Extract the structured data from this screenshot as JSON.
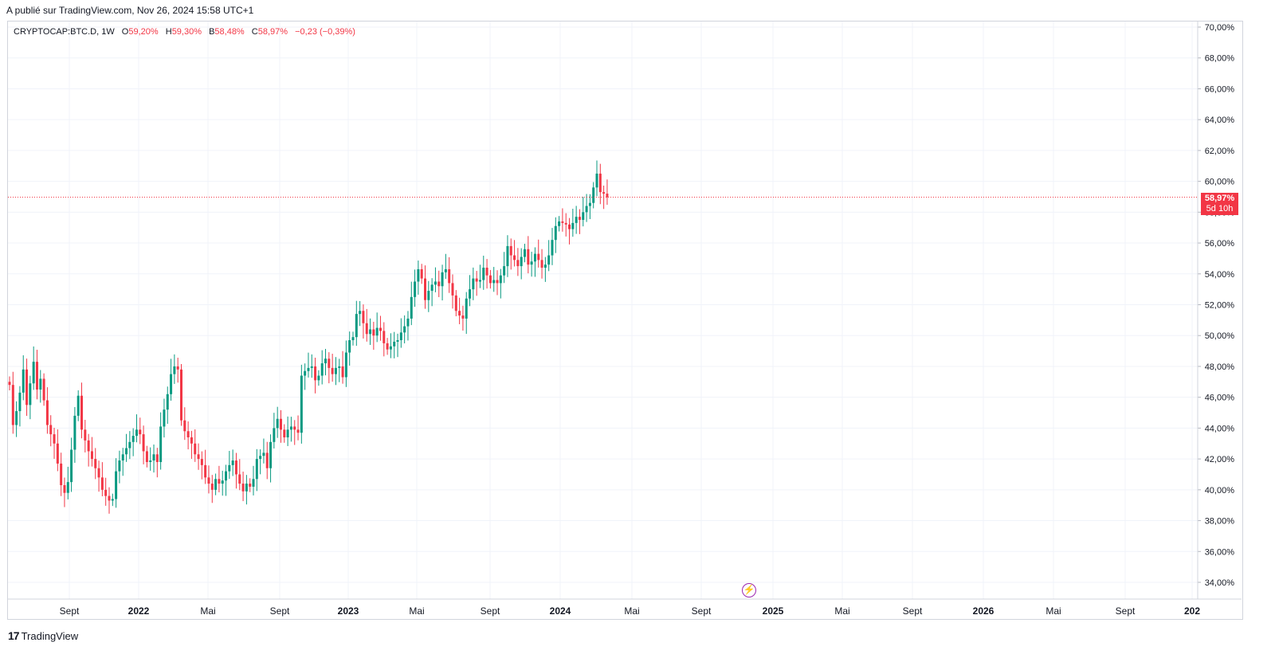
{
  "published": "A publié sur TradingView.com, Nov 26, 2024 15:58 UTC+1",
  "legend": {
    "symbol": "CRYPTOCAP:BTC.D, 1W",
    "open_label": "O",
    "open": "59,20%",
    "high_label": "H",
    "high": "59,30%",
    "low_label": "B",
    "low": "58,48%",
    "close_label": "C",
    "close": "58,97%",
    "change": "−0,23 (−0,39%)"
  },
  "price_tag": {
    "value": "58,97%",
    "countdown": "5d 10h"
  },
  "footer": {
    "logo_mark": "17",
    "logo_text": "TradingView"
  },
  "icons": {
    "event": "lightning-icon"
  },
  "colors": {
    "up": "#089981",
    "down": "#f23645",
    "grid": "#f0f3fa",
    "axis_text": "#131722"
  },
  "chart_data": {
    "type": "candlestick",
    "timeframe": "1W",
    "y_axis": {
      "min": 33,
      "max": 71,
      "ticks": [
        "34,00%",
        "36,00%",
        "38,00%",
        "40,00%",
        "42,00%",
        "44,00%",
        "46,00%",
        "48,00%",
        "50,00%",
        "52,00%",
        "54,00%",
        "56,00%",
        "58,00%",
        "60,00%",
        "62,00%",
        "64,00%",
        "66,00%",
        "68,00%",
        "70,00%"
      ]
    },
    "x_axis": {
      "ticks": [
        "Sept",
        "2022",
        "Mai",
        "Sept",
        "2023",
        "Mai",
        "Sept",
        "2024",
        "Mai",
        "Sept",
        "2025",
        "Mai",
        "Sept",
        "2026",
        "Mai",
        "Sept",
        "202"
      ],
      "bold": [
        false,
        true,
        false,
        false,
        true,
        false,
        false,
        true,
        false,
        false,
        true,
        false,
        false,
        true,
        false,
        false,
        true
      ]
    },
    "last_price": 58.97,
    "grid": true,
    "weekly_close": [
      46.8,
      44.2,
      45.1,
      46.3,
      47.8,
      45.5,
      46.9,
      48.3,
      46.5,
      47.2,
      45.8,
      44.2,
      43.6,
      43.0,
      41.7,
      40.3,
      39.8,
      40.5,
      42.6,
      44.8,
      46.1,
      43.9,
      43.2,
      42.5,
      42.0,
      41.4,
      40.8,
      40.0,
      39.6,
      39.3,
      39.4,
      41.2,
      41.9,
      42.3,
      42.7,
      43.1,
      43.5,
      43.9,
      43.6,
      42.5,
      41.8,
      41.9,
      42.3,
      41.8,
      44.1,
      45.2,
      46.2,
      47.5,
      48.0,
      47.8,
      44.5,
      43.8,
      43.4,
      43.0,
      42.3,
      42.0,
      41.6,
      40.8,
      40.4,
      40.0,
      40.7,
      40.4,
      40.6,
      41.2,
      41.6,
      41.9,
      41.0,
      40.4,
      39.9,
      40.4,
      40.2,
      40.7,
      42.0,
      42.2,
      42.4,
      41.4,
      43.1,
      44.0,
      44.6,
      43.9,
      43.4,
      43.9,
      44.1,
      43.9,
      43.7,
      47.4,
      47.7,
      47.9,
      48.0,
      47.1,
      47.4,
      48.2,
      48.5,
      47.9,
      47.5,
      47.9,
      48.0,
      47.3,
      48.9,
      49.7,
      49.9,
      51.4,
      51.6,
      50.8,
      50.1,
      50.4,
      50.0,
      50.5,
      50.3,
      49.5,
      49.1,
      49.3,
      49.6,
      49.7,
      50.2,
      50.6,
      51.1,
      52.5,
      53.5,
      54.3,
      53.7,
      52.3,
      52.9,
      53.3,
      53.5,
      53.2,
      54.1,
      54.3,
      53.4,
      52.6,
      51.6,
      51.3,
      51.1,
      52.4,
      53.0,
      53.7,
      53.5,
      53.6,
      54.4,
      53.9,
      53.4,
      53.6,
      53.4,
      53.9,
      54.5,
      55.8,
      55.2,
      54.9,
      54.5,
      55.1,
      55.6,
      54.6,
      54.8,
      55.3,
      54.9,
      54.4,
      54.6,
      55.2,
      56.2,
      57.1,
      57.4,
      57.3,
      57.2,
      56.9,
      57.3,
      57.7,
      57.5,
      58.0,
      58.4,
      58.6,
      59.6,
      60.5,
      59.3,
      59.2,
      58.97
    ]
  }
}
